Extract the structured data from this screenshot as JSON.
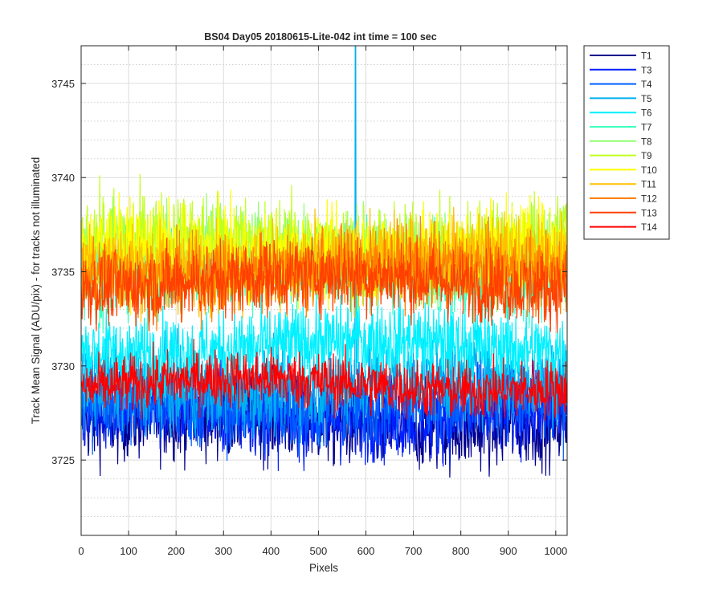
{
  "chart_data": {
    "type": "line",
    "title": "BS04 Day05 20180615-Lite-042 int time = 100 sec",
    "xlabel": "Pixels",
    "ylabel": "Track Mean Signal (ADU/pix) - for tracks not illuminated",
    "xlim": [
      0,
      1024
    ],
    "ylim": [
      3721,
      3747
    ],
    "x_ticks": [
      0,
      100,
      200,
      300,
      400,
      500,
      600,
      700,
      800,
      900,
      1000
    ],
    "y_ticks": [
      3725,
      3730,
      3735,
      3740,
      3745
    ],
    "grid": true,
    "minor_grid_y": true,
    "legend_position": "outside-top-right",
    "n_points": 1024,
    "series": [
      {
        "name": "T1",
        "color": "#00008f",
        "mean": 3727.0,
        "noise": 1.6
      },
      {
        "name": "T3",
        "color": "#0020ff",
        "mean": 3727.5,
        "noise": 1.6
      },
      {
        "name": "T4",
        "color": "#0060ff",
        "mean": 3728.0,
        "noise": 1.6
      },
      {
        "name": "T5",
        "color": "#00b0f0",
        "mean": 3729.0,
        "noise": 1.6,
        "spike": {
          "x": 578,
          "y": 3747
        }
      },
      {
        "name": "T6",
        "color": "#00f0ff",
        "mean": 3731.0,
        "noise": 1.5
      },
      {
        "name": "T7",
        "color": "#40ffc0",
        "mean": 3735.0,
        "noise": 1.6
      },
      {
        "name": "T8",
        "color": "#90ff70",
        "mean": 3736.0,
        "noise": 1.7
      },
      {
        "name": "T9",
        "color": "#c0ff20",
        "mean": 3736.5,
        "noise": 1.7
      },
      {
        "name": "T10",
        "color": "#ffff00",
        "mean": 3736.0,
        "noise": 1.7
      },
      {
        "name": "T11",
        "color": "#ffc000",
        "mean": 3735.5,
        "noise": 1.6
      },
      {
        "name": "T12",
        "color": "#ff8000",
        "mean": 3735.0,
        "noise": 1.5
      },
      {
        "name": "T13",
        "color": "#ff4000",
        "mean": 3734.5,
        "noise": 1.4
      },
      {
        "name": "T14",
        "color": "#ff0000",
        "mean": 3729.0,
        "noise": 1.1
      }
    ]
  }
}
